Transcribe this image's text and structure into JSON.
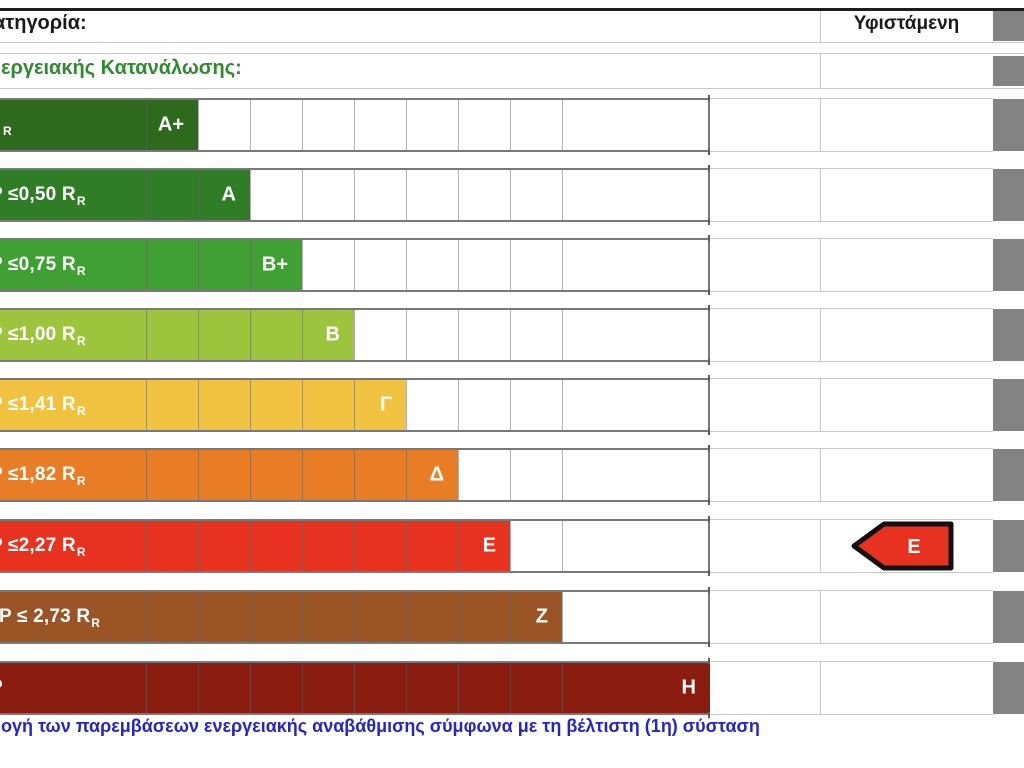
{
  "header": {
    "category_label": "ατηγορία:",
    "consumption_label": "εργειακής Κατανάλωσης:",
    "existing_label": "Υφιστάμενη"
  },
  "chart_data": {
    "type": "bar",
    "orientation": "horizontal",
    "title": "Energy class rating scale",
    "column_header": "Υφιστάμενη",
    "categories": [
      "A+",
      "A",
      "B+",
      "B",
      "Γ",
      "Δ",
      "E",
      "Z",
      "H"
    ],
    "values": [
      1,
      2,
      3,
      4,
      5,
      6,
      7,
      8,
      9
    ],
    "grid_columns": 10,
    "existing_class": "E",
    "rows": [
      {
        "letter": "A+",
        "threshold": "",
        "threshold_sub": "R",
        "color": "#2d6a1e"
      },
      {
        "letter": "A",
        "threshold": "P ≤0,50 R",
        "threshold_sub": "R",
        "color": "#2f7d26"
      },
      {
        "letter": "B+",
        "threshold": "P ≤0,75 R",
        "threshold_sub": "R",
        "color": "#41a033"
      },
      {
        "letter": "B",
        "threshold": "P ≤1,00 R",
        "threshold_sub": "R",
        "color": "#9cc43d"
      },
      {
        "letter": "Γ",
        "threshold": "P ≤1,41 R",
        "threshold_sub": "R",
        "color": "#f0c23f"
      },
      {
        "letter": "Δ",
        "threshold": "P ≤1,82 R",
        "threshold_sub": "R",
        "color": "#e97d25"
      },
      {
        "letter": "E",
        "threshold": "P ≤2,27 R",
        "threshold_sub": "R",
        "color": "#e6321f"
      },
      {
        "letter": "Z",
        "threshold": "P ≤ 2,73 R",
        "threshold_sub": "R",
        "color": "#9a5426"
      },
      {
        "letter": "H",
        "threshold": "P",
        "threshold_sub": "",
        "color": "#8a1c10"
      }
    ]
  },
  "marker": {
    "row_letter": "E",
    "label": "E",
    "fill": "#e6321f",
    "border": "#111111"
  },
  "colors": {
    "gray_block": "#838383",
    "footer_text": "#2424cd",
    "header_green": "#2f8b2f"
  },
  "footer": {
    "note": "ογή των παρεμβάσεων ενεργειακής αναβάθμισης σύμφωνα με τη βέλτιστη (1η) σύσταση"
  }
}
